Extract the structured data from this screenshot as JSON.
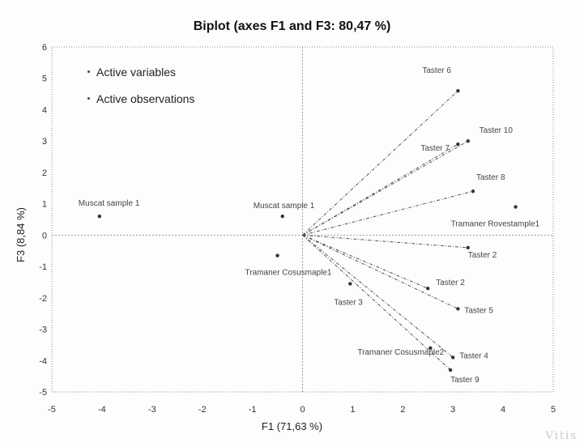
{
  "chart_data": {
    "type": "scatter",
    "title": "Biplot (axes F1 and F3: 80,47 %)",
    "xlabel": "F1 (71,63 %)",
    "ylabel": "F3 (8,84 %)",
    "xlim": [
      -5,
      5
    ],
    "ylim": [
      -5,
      6
    ],
    "x_ticks": [
      -5,
      -4,
      -3,
      -2,
      -1,
      0,
      1,
      2,
      3,
      4,
      5
    ],
    "y_ticks": [
      -5,
      -4,
      -3,
      -2,
      -1,
      0,
      1,
      2,
      3,
      4,
      5,
      6
    ],
    "legend": {
      "position": "top-left",
      "entries": [
        "Active variables",
        "Active observations"
      ]
    },
    "series": [
      {
        "name": "Active variables",
        "style": "vectors from origin",
        "points": [
          {
            "label": "Taster 6",
            "x": 3.1,
            "y": 4.6
          },
          {
            "label": "Taster 7",
            "x": 3.1,
            "y": 2.9
          },
          {
            "label": "Taster 10",
            "x": 3.3,
            "y": 3.0
          },
          {
            "label": "Taster 8",
            "x": 3.4,
            "y": 1.4
          },
          {
            "label": "Taster 2",
            "x": 3.3,
            "y": -0.4
          },
          {
            "label": "Taster 2",
            "x": 2.5,
            "y": -1.7
          },
          {
            "label": "Taster 5",
            "x": 3.1,
            "y": -2.35
          },
          {
            "label": "Taster 4",
            "x": 3.0,
            "y": -3.9
          },
          {
            "label": "Taster 9",
            "x": 2.95,
            "y": -4.3
          }
        ]
      },
      {
        "name": "Active observations",
        "style": "points",
        "points": [
          {
            "label": "Muscat sample 1",
            "x": -4.05,
            "y": 0.6
          },
          {
            "label": "Muscat sample 1",
            "x": -0.4,
            "y": 0.6
          },
          {
            "label": "Tramaner Rovestample1",
            "x": 4.25,
            "y": 0.9
          },
          {
            "label": "Tramaner Cosusmaple1",
            "x": -0.5,
            "y": -0.65
          },
          {
            "label": "Taster 3",
            "x": 0.95,
            "y": -1.55
          },
          {
            "label": "Tramaner Cosusmaple2",
            "x": 2.55,
            "y": -3.6
          }
        ]
      }
    ],
    "grid": false
  },
  "watermark": "Vitis"
}
